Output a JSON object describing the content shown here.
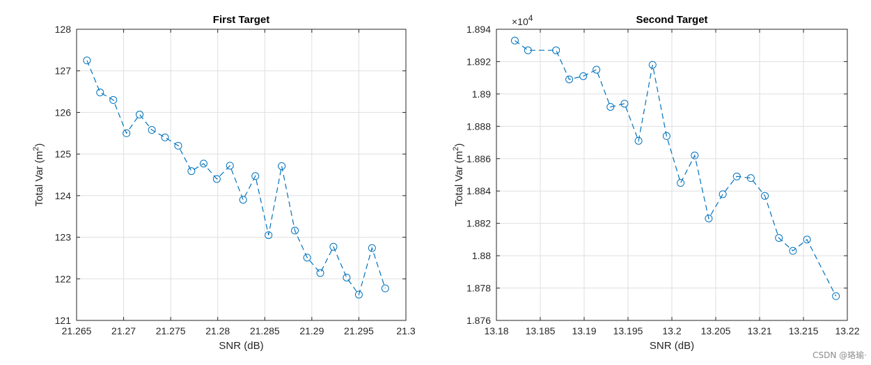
{
  "watermark": "CSDN @珞瑜·",
  "chart_data": [
    {
      "type": "line",
      "title": "First Target",
      "xlabel": "SNR (dB)",
      "ylabel_main": "Total Var (m",
      "ylabel_sup": "2",
      "ylabel_close": ")",
      "xlim": [
        21.265,
        21.3
      ],
      "ylim": [
        121,
        128
      ],
      "xticks": [
        21.265,
        21.27,
        21.275,
        21.28,
        21.285,
        21.29,
        21.295,
        21.3
      ],
      "xtick_labels": [
        "21.265",
        "21.27",
        "21.275",
        "21.28",
        "21.285",
        "21.29",
        "21.295",
        "21.3"
      ],
      "yticks": [
        121,
        122,
        123,
        124,
        125,
        126,
        127,
        128
      ],
      "ytick_labels": [
        "121",
        "122",
        "123",
        "124",
        "125",
        "126",
        "127",
        "128"
      ],
      "grid": true,
      "line_color": "#0072BD",
      "line_style": "dashed",
      "marker": "circle",
      "series": [
        {
          "x": [
            21.2661,
            21.2675,
            21.2689,
            21.2703,
            21.2717,
            21.273,
            21.2744,
            21.2758,
            21.2772,
            21.2785,
            21.2799,
            21.2813,
            21.2827,
            21.284,
            21.2854,
            21.2868,
            21.2882,
            21.2895,
            21.2909,
            21.2923,
            21.2937,
            21.295,
            21.2964,
            21.2978
          ],
          "y": [
            127.25,
            126.48,
            126.3,
            125.5,
            125.95,
            125.58,
            125.4,
            125.2,
            124.59,
            124.77,
            124.4,
            124.72,
            123.9,
            124.47,
            123.05,
            124.71,
            123.16,
            122.51,
            122.14,
            122.77,
            122.03,
            121.62,
            122.74,
            121.77
          ]
        }
      ]
    },
    {
      "type": "line",
      "title": "Second Target",
      "xlabel": "SNR (dB)",
      "ylabel_main": "Total Var (m",
      "ylabel_sup": "2",
      "ylabel_close": ")",
      "y_exponent_base": "×10",
      "y_exponent_power": "4",
      "xlim": [
        13.18,
        13.22
      ],
      "ylim": [
        1.876,
        1.894
      ],
      "xticks": [
        13.18,
        13.185,
        13.19,
        13.195,
        13.2,
        13.205,
        13.21,
        13.215,
        13.22
      ],
      "xtick_labels": [
        "13.18",
        "13.185",
        "13.19",
        "13.195",
        "13.2",
        "13.205",
        "13.21",
        "13.215",
        "13.22"
      ],
      "yticks": [
        1.876,
        1.878,
        1.88,
        1.882,
        1.884,
        1.886,
        1.888,
        1.89,
        1.892,
        1.894
      ],
      "ytick_labels": [
        "1.876",
        "1.878",
        "1.88",
        "1.882",
        "1.884",
        "1.886",
        "1.888",
        "1.89",
        "1.892",
        "1.894"
      ],
      "grid": true,
      "line_color": "#0072BD",
      "line_style": "dashed",
      "marker": "circle",
      "series": [
        {
          "x": [
            13.1821,
            13.1836,
            13.1868,
            13.1883,
            13.1899,
            13.1914,
            13.193,
            13.1946,
            13.1962,
            13.1978,
            13.1994,
            13.201,
            13.2026,
            13.2042,
            13.2058,
            13.2074,
            13.209,
            13.2106,
            13.2122,
            13.2138,
            13.2154,
            13.2187
          ],
          "y": [
            1.8933,
            1.8927,
            1.8927,
            1.8909,
            1.8911,
            1.8915,
            1.8892,
            1.8894,
            1.8871,
            1.8918,
            1.8874,
            1.8845,
            1.8862,
            1.8823,
            1.8838,
            1.8849,
            1.8848,
            1.8837,
            1.8811,
            1.8803,
            1.881,
            1.8775
          ]
        }
      ]
    }
  ]
}
